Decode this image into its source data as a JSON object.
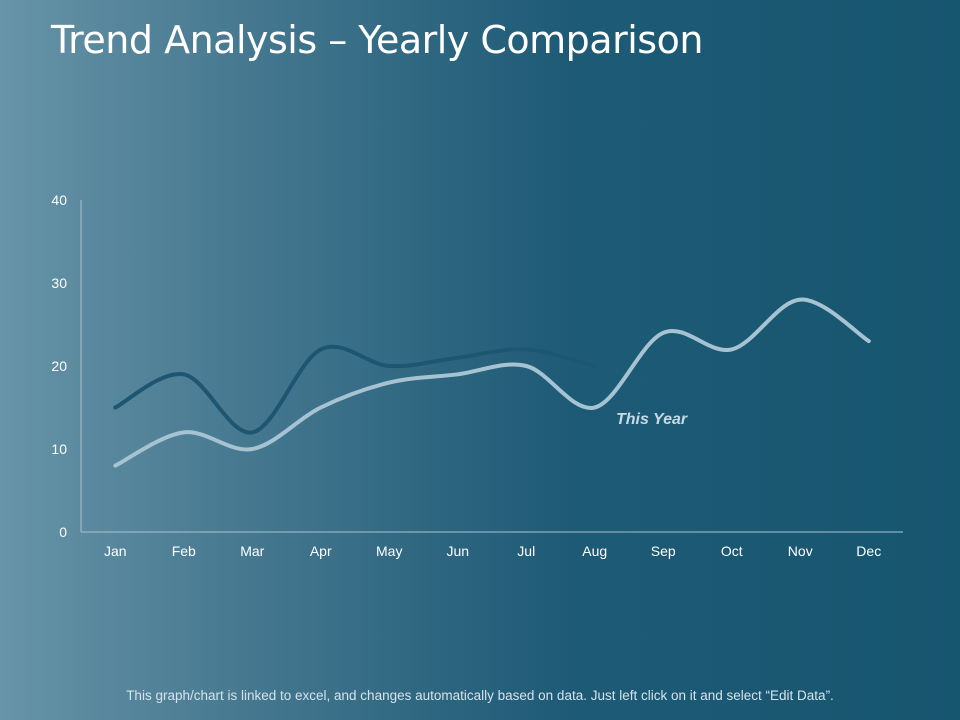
{
  "slide": {
    "title": "Trend Analysis – Yearly Comparison",
    "footnote": "This graph/chart is linked to excel, and changes automatically based on data. Just left click on it and select “Edit Data”."
  },
  "chart_data": {
    "type": "line",
    "categories": [
      "Jan",
      "Feb",
      "Mar",
      "Apr",
      "May",
      "Jun",
      "Jul",
      "Aug",
      "Sep",
      "Oct",
      "Nov",
      "Dec"
    ],
    "ylim": [
      0,
      40
    ],
    "yticks": [
      0,
      10,
      20,
      30,
      40
    ],
    "grid": false,
    "smooth": true,
    "series": [
      {
        "name": "",
        "color": "#1e5672",
        "values": [
          15,
          19,
          12,
          22,
          20,
          21,
          22,
          20,
          null,
          null,
          null,
          null
        ]
      },
      {
        "name": "This Year",
        "color": "#a6c3d2",
        "values": [
          8,
          12,
          10,
          15,
          18,
          19,
          20,
          15,
          24,
          22,
          28,
          23
        ]
      }
    ]
  }
}
